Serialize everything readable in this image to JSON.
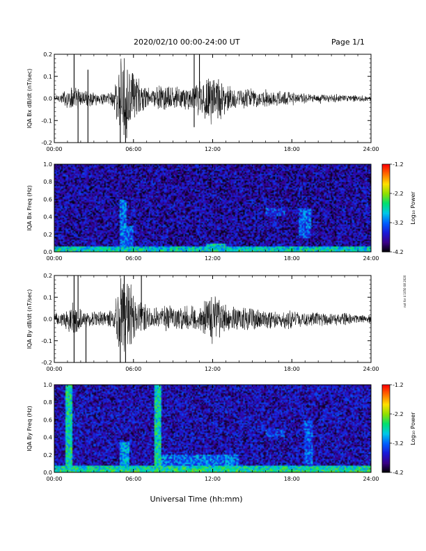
{
  "header": {
    "title": "2020/02/10  00:00-24:00 UT",
    "page": "Page 1/1"
  },
  "footer": {
    "xlabel": "Universal Time (hh:mm)"
  },
  "side_note": "not for 4 1050 08 2020",
  "colors": {
    "trace": "#000000",
    "colormap": [
      "#000000",
      "#3a0088",
      "#1a1ad8",
      "#0060ff",
      "#00c8e8",
      "#00e070",
      "#90e000",
      "#ffe000",
      "#ff7000",
      "#ff0000"
    ]
  },
  "chart_data": [
    {
      "type": "line",
      "ylabel": "IQA Bx dB/dt (nT/sec)",
      "x_ticks": [
        "00:00",
        "06:00",
        "12:00",
        "18:00",
        "24:00"
      ],
      "xlim": [
        0,
        24
      ],
      "ylim": [
        -0.2,
        0.2
      ],
      "y_ticks": [
        "-0.2",
        "-0.1",
        "0.0",
        "0.1",
        "0.2"
      ],
      "x_hours": [
        0,
        0.5,
        1,
        1.5,
        2,
        2.5,
        3,
        3.5,
        4,
        4.5,
        5,
        5.5,
        6,
        6.5,
        7,
        7.5,
        8,
        8.5,
        9,
        9.5,
        10,
        10.5,
        11,
        11.5,
        12,
        12.5,
        13,
        13.5,
        14,
        14.5,
        15,
        15.5,
        16,
        16.5,
        17,
        17.5,
        18,
        18.5,
        19,
        19.5,
        20,
        20.5,
        21,
        21.5,
        22,
        22.5,
        23,
        23.5,
        24
      ],
      "envelope": [
        0.02,
        0.025,
        0.06,
        0.06,
        0.05,
        0.04,
        0.035,
        0.03,
        0.03,
        0.05,
        0.2,
        0.19,
        0.15,
        0.09,
        0.06,
        0.05,
        0.07,
        0.06,
        0.06,
        0.06,
        0.06,
        0.06,
        0.1,
        0.12,
        0.14,
        0.11,
        0.07,
        0.06,
        0.05,
        0.06,
        0.05,
        0.04,
        0.045,
        0.04,
        0.035,
        0.04,
        0.035,
        0.03,
        0.03,
        0.025,
        0.025,
        0.025,
        0.02,
        0.02,
        0.018,
        0.018,
        0.015,
        0.015,
        0.012
      ],
      "spikes": [
        {
          "x": 1.5,
          "y": 0.2
        },
        {
          "x": 1.8,
          "y": -0.2
        },
        {
          "x": 2.55,
          "y": -0.2
        },
        {
          "x": 2.55,
          "y": 0.13
        },
        {
          "x": 5.0,
          "y": -0.2
        },
        {
          "x": 5.4,
          "y": -0.2
        },
        {
          "x": 10.6,
          "y": -0.13
        },
        {
          "x": 10.6,
          "y": 0.2
        },
        {
          "x": 11.0,
          "y": 0.2
        }
      ]
    },
    {
      "type": "heatmap",
      "ylabel": "IQA Bx Freq (Hz)",
      "x_ticks": [
        "00:00",
        "06:00",
        "12:00",
        "18:00",
        "24:00"
      ],
      "xlim": [
        0,
        24
      ],
      "ylim": [
        0,
        1.0
      ],
      "y_ticks": [
        "0.0",
        "0.2",
        "0.4",
        "0.6",
        "0.8",
        "1.0"
      ],
      "colorbar": {
        "label": "Log₁₀ Power",
        "ticks": [
          "-1.2",
          "-2.2",
          "-3.2",
          "-4.2"
        ],
        "range": [
          -4.2,
          -1.2
        ]
      },
      "background_level": -3.75,
      "low_freq_band": {
        "max_freq": 0.06,
        "level": -2.9
      },
      "enhancements": [
        {
          "x": [
            5.0,
            5.5
          ],
          "freq": [
            0.0,
            0.6
          ],
          "level": -3.2
        },
        {
          "x": [
            5.5,
            6.0
          ],
          "freq": [
            0.0,
            0.3
          ],
          "level": -3.3
        },
        {
          "x": [
            11.5,
            13.0
          ],
          "freq": [
            0.0,
            0.1
          ],
          "level": -2.8
        },
        {
          "x": [
            16.0,
            17.5
          ],
          "freq": [
            0.4,
            0.5
          ],
          "level": -3.4
        },
        {
          "x": [
            18.5,
            19.5
          ],
          "freq": [
            0.15,
            0.5
          ],
          "level": -3.3
        }
      ]
    },
    {
      "type": "line",
      "ylabel": "IQA By dB/dt (nT/sec)",
      "x_ticks": [
        "00:00",
        "06:00",
        "12:00",
        "18:00",
        "24:00"
      ],
      "xlim": [
        0,
        24
      ],
      "ylim": [
        -0.2,
        0.2
      ],
      "y_ticks": [
        "-0.2",
        "-0.1",
        "0.0",
        "0.1",
        "0.2"
      ],
      "x_hours": [
        0,
        0.5,
        1,
        1.5,
        2,
        2.5,
        3,
        3.5,
        4,
        4.5,
        5,
        5.5,
        6,
        6.5,
        7,
        7.5,
        8,
        8.5,
        9,
        9.5,
        10,
        10.5,
        11,
        11.5,
        12,
        12.5,
        13,
        13.5,
        14,
        14.5,
        15,
        15.5,
        16,
        16.5,
        17,
        17.5,
        18,
        18.5,
        19,
        19.5,
        20,
        20.5,
        21,
        21.5,
        22,
        22.5,
        23,
        23.5,
        24
      ],
      "envelope": [
        0.03,
        0.035,
        0.06,
        0.09,
        0.06,
        0.05,
        0.045,
        0.04,
        0.04,
        0.06,
        0.2,
        0.19,
        0.16,
        0.09,
        0.07,
        0.06,
        0.06,
        0.07,
        0.07,
        0.07,
        0.07,
        0.07,
        0.08,
        0.1,
        0.13,
        0.1,
        0.08,
        0.07,
        0.06,
        0.06,
        0.06,
        0.05,
        0.055,
        0.05,
        0.045,
        0.05,
        0.05,
        0.04,
        0.04,
        0.035,
        0.035,
        0.035,
        0.03,
        0.03,
        0.03,
        0.025,
        0.025,
        0.02,
        0.02
      ],
      "spikes": [
        {
          "x": 1.5,
          "y": 0.2
        },
        {
          "x": 1.5,
          "y": -0.2
        },
        {
          "x": 1.8,
          "y": 0.2
        },
        {
          "x": 2.4,
          "y": -0.2
        },
        {
          "x": 5.0,
          "y": -0.2
        },
        {
          "x": 5.3,
          "y": 0.2
        },
        {
          "x": 5.4,
          "y": -0.2
        },
        {
          "x": 6.6,
          "y": 0.2
        }
      ]
    },
    {
      "type": "heatmap",
      "ylabel": "IQA By Freq (Hz)",
      "x_ticks": [
        "00:00",
        "06:00",
        "12:00",
        "18:00",
        "24:00"
      ],
      "xlim": [
        0,
        24
      ],
      "ylim": [
        0,
        1.0
      ],
      "y_ticks": [
        "0.0",
        "0.2",
        "0.4",
        "0.6",
        "0.8",
        "1.0"
      ],
      "colorbar": {
        "label": "Log₁₀ Power",
        "ticks": [
          "-1.2",
          "-2.2",
          "-3.2",
          "-4.2"
        ],
        "range": [
          -4.2,
          -1.2
        ]
      },
      "background_level": -3.7,
      "low_freq_band": {
        "max_freq": 0.08,
        "level": -2.8
      },
      "enhancements": [
        {
          "x": [
            0.8,
            1.4
          ],
          "freq": [
            0.0,
            1.0
          ],
          "level": -2.7
        },
        {
          "x": [
            5.0,
            5.7
          ],
          "freq": [
            0.0,
            0.35
          ],
          "level": -3.0
        },
        {
          "x": [
            7.6,
            8.1
          ],
          "freq": [
            0.0,
            1.0
          ],
          "level": -2.7
        },
        {
          "x": [
            8.0,
            14.0
          ],
          "freq": [
            0.0,
            0.2
          ],
          "level": -3.2
        },
        {
          "x": [
            16.0,
            17.5
          ],
          "freq": [
            0.4,
            0.5
          ],
          "level": -3.4
        },
        {
          "x": [
            19.0,
            19.6
          ],
          "freq": [
            0.1,
            0.6
          ],
          "level": -3.3
        }
      ]
    }
  ]
}
